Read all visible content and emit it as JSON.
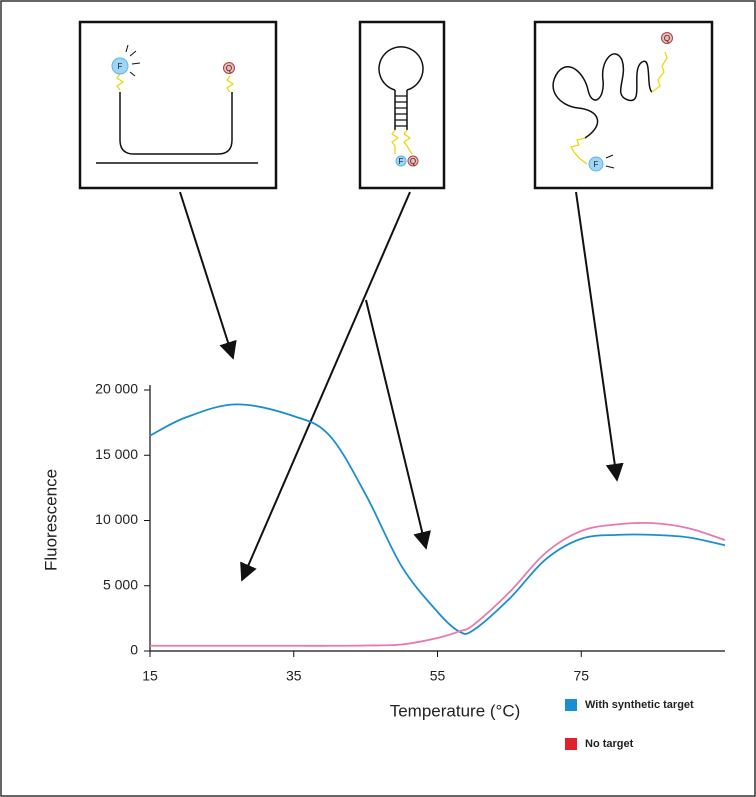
{
  "chart_data": {
    "type": "line",
    "xlabel": "Temperature (°C)",
    "ylabel": "Fluorescence",
    "x": [
      15,
      20,
      27,
      35,
      40,
      45,
      50,
      55,
      58,
      60,
      65,
      70,
      75,
      80,
      85,
      90,
      95
    ],
    "series": [
      {
        "name": "With synthetic target",
        "color": "#1a8fd0",
        "legend_color": "#1a8fd0",
        "values": [
          16500,
          17900,
          18900,
          18000,
          16500,
          12000,
          6500,
          3000,
          1500,
          1600,
          4000,
          7000,
          8600,
          8900,
          8900,
          8700,
          8100
        ]
      },
      {
        "name": "No target",
        "color": "#e878b0",
        "legend_color": "#e0202e",
        "values": [
          400,
          400,
          400,
          400,
          400,
          420,
          500,
          1000,
          1500,
          2000,
          4500,
          7500,
          9200,
          9700,
          9800,
          9400,
          8500
        ]
      }
    ],
    "xlim": [
      15,
      95
    ],
    "ylim": [
      0,
      20000
    ],
    "xticks": [
      15,
      35,
      55,
      75
    ],
    "yticks": [
      0,
      {
        "value": 5000,
        "label": "5 000"
      },
      {
        "value": 10000,
        "label": "10 000"
      },
      {
        "value": 15000,
        "label": "15 000"
      },
      {
        "value": 20000,
        "label": "20 000"
      }
    ],
    "grid": false
  },
  "probes": [
    {
      "fluorophore": "F",
      "quencher": "Q"
    },
    {
      "fluorophore": "F",
      "quencher": "Q"
    },
    {
      "fluorophore": "F",
      "quencher": "Q"
    }
  ]
}
